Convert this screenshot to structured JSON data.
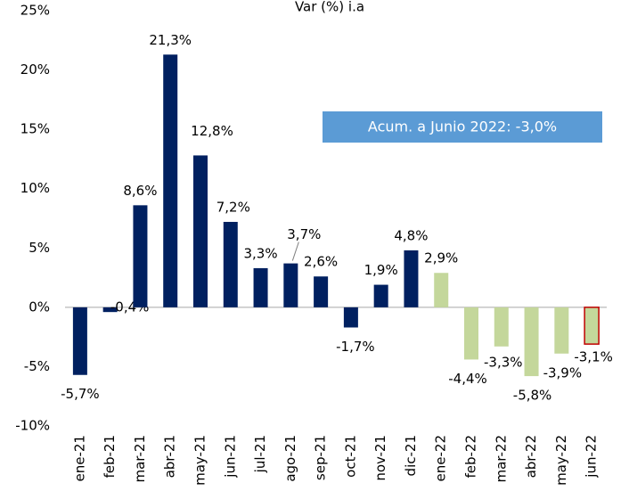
{
  "chart_data": {
    "type": "bar",
    "title": "Var (%) i.a",
    "annotation": "Acum. a Junio 2022: -3,0%",
    "categories": [
      "ene-21",
      "feb-21",
      "mar-21",
      "abr-21",
      "may-21",
      "jun-21",
      "jul-21",
      "ago-21",
      "sep-21",
      "oct-21",
      "nov-21",
      "dic-21",
      "ene-22",
      "feb-22",
      "mar-22",
      "abr-22",
      "may-22",
      "jun-22"
    ],
    "values": [
      -5.7,
      -0.4,
      8.6,
      21.3,
      12.8,
      7.2,
      3.3,
      3.7,
      2.6,
      -1.7,
      1.9,
      4.8,
      2.9,
      -4.4,
      -3.3,
      -5.8,
      -3.9,
      -3.1
    ],
    "value_labels": [
      "-5,7%",
      "-0,4%",
      "8,6%",
      "21,3%",
      "12,8%",
      "7,2%",
      "3,3%",
      "3,7%",
      "2,6%",
      "-1,7%",
      "1,9%",
      "4,8%",
      "2,9%",
      "-4,4%",
      "-3,3%",
      "-5,8%",
      "-3,9%",
      "-3,1%"
    ],
    "colors": [
      "#002060",
      "#002060",
      "#002060",
      "#002060",
      "#002060",
      "#002060",
      "#002060",
      "#002060",
      "#002060",
      "#002060",
      "#002060",
      "#002060",
      "#c4d79b",
      "#c4d79b",
      "#c4d79b",
      "#c4d79b",
      "#c4d79b",
      "#c4d79b"
    ],
    "edge_colors": [
      null,
      null,
      null,
      null,
      null,
      null,
      null,
      null,
      null,
      null,
      null,
      null,
      null,
      null,
      null,
      null,
      null,
      "#c00000"
    ],
    "ylim": [
      -10,
      25
    ],
    "yticks": [
      {
        "value": -10,
        "label": "-10%"
      },
      {
        "value": -5,
        "label": "-5%"
      },
      {
        "value": 0,
        "label": "0%"
      },
      {
        "value": 5,
        "label": "5%"
      },
      {
        "value": 10,
        "label": "10%"
      },
      {
        "value": 15,
        "label": "15%"
      },
      {
        "value": 20,
        "label": "20%"
      },
      {
        "value": 25,
        "label": "25%"
      }
    ],
    "grid": false
  }
}
